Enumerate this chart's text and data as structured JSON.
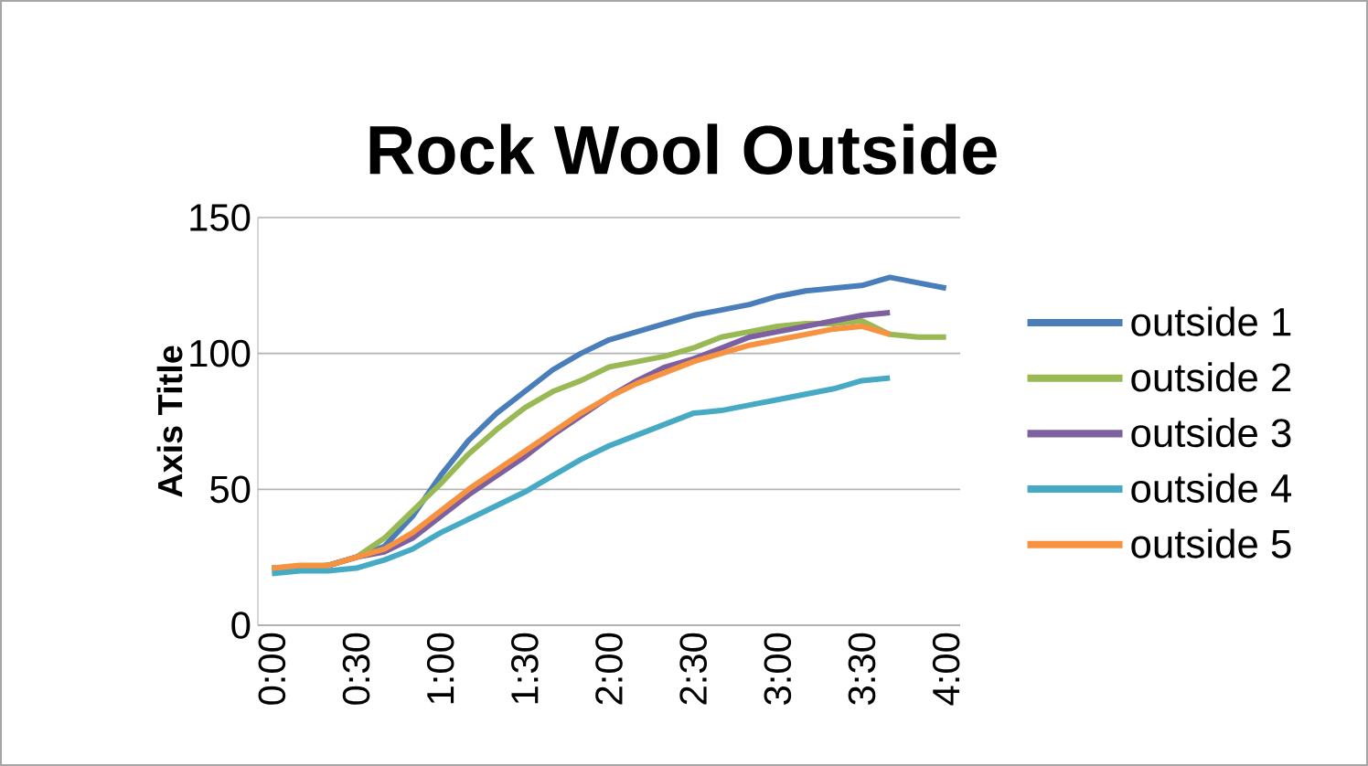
{
  "chart_data": {
    "type": "line",
    "title": "Rock Wool Outside",
    "ylabel": "Axis Title",
    "categories": [
      "0:00",
      null,
      null,
      "0:30",
      null,
      null,
      "1:00",
      null,
      null,
      "1:30",
      null,
      null,
      "2:00",
      null,
      null,
      "2:30",
      null,
      null,
      "3:00",
      null,
      null,
      "3:30",
      null,
      null,
      "4:00"
    ],
    "series": [
      {
        "name": "outside 1",
        "color": "#4a7ebb",
        "values": [
          21,
          21,
          22,
          25,
          29,
          40,
          55,
          68,
          78,
          86,
          94,
          100,
          105,
          108,
          111,
          114,
          116,
          118,
          121,
          123,
          124,
          125,
          128,
          126,
          124
        ]
      },
      {
        "name": "outside 2",
        "color": "#98b954",
        "values": [
          21,
          21,
          22,
          25,
          32,
          42,
          52,
          63,
          72,
          80,
          86,
          90,
          95,
          97,
          99,
          102,
          106,
          108,
          110,
          111,
          111,
          112,
          107,
          106,
          106
        ]
      },
      {
        "name": "outside 3",
        "color": "#7d60a0",
        "values": [
          null,
          null,
          22,
          25,
          27,
          32,
          40,
          48,
          55,
          62,
          70,
          77,
          84,
          90,
          95,
          98,
          102,
          106,
          108,
          110,
          112,
          114,
          115,
          null,
          null
        ]
      },
      {
        "name": "outside 4",
        "color": "#46aac5",
        "values": [
          19,
          20,
          20,
          21,
          24,
          28,
          34,
          39,
          44,
          49,
          55,
          61,
          66,
          70,
          74,
          78,
          79,
          81,
          83,
          85,
          87,
          90,
          91,
          null,
          null
        ]
      },
      {
        "name": "outside 5",
        "color": "#f69240",
        "values": [
          21,
          22,
          22,
          25,
          28,
          34,
          42,
          50,
          57,
          64,
          71,
          78,
          84,
          89,
          93,
          97,
          100,
          103,
          105,
          107,
          109,
          110,
          107,
          null,
          null
        ]
      }
    ],
    "ylim": [
      0,
      150
    ],
    "yticks": [
      0,
      50,
      100,
      150
    ],
    "grid": "y",
    "legend": "right"
  }
}
